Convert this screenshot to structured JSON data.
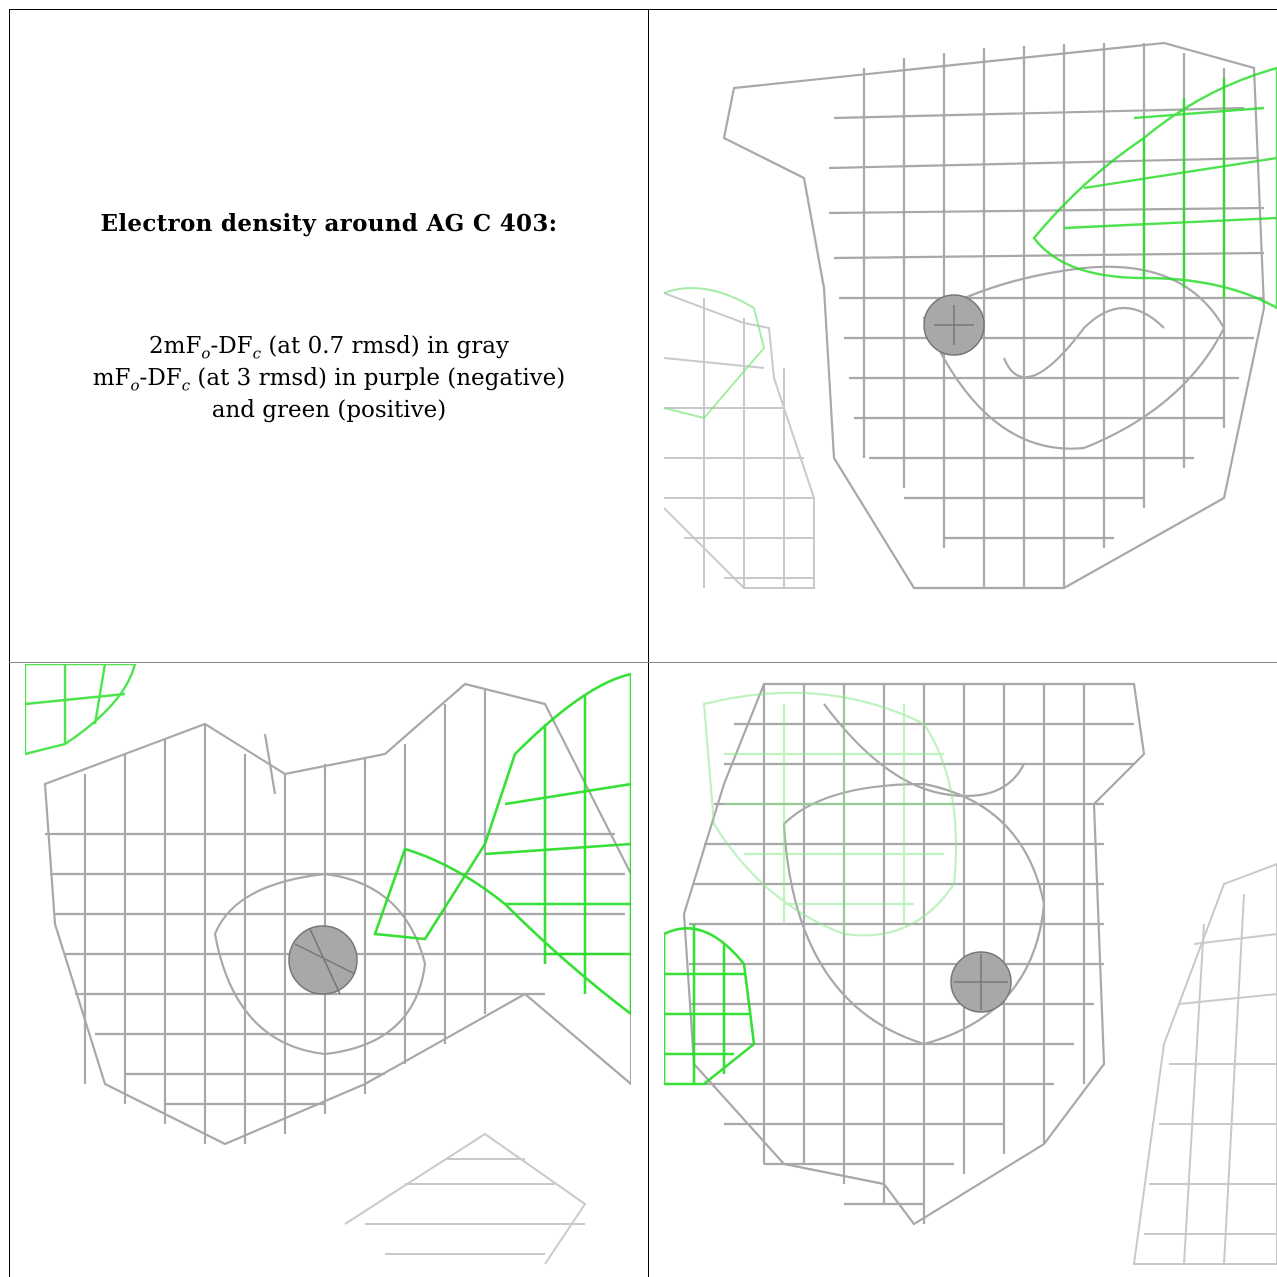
{
  "text_cell": {
    "title": "Electron density around AG C 403:",
    "legend_line1": {
      "pre": "2mF",
      "sub_o": "o",
      "mid": "-DF",
      "sub_c": "c",
      "post": " (at 0.7 rmsd) in gray"
    },
    "legend_line2": {
      "pre": "mF",
      "sub_o": "o",
      "mid": "-DF",
      "sub_c": "c",
      "post": " (at 3 rmsd) in purple (negative)"
    },
    "legend_line3": "and green (positive)"
  },
  "colors": {
    "mesh_gray": "#9a9a9a",
    "mesh_green": "#22dd22",
    "sphere": "#a8a8a8",
    "border": "#000000"
  },
  "panels": [
    {
      "name": "top-right",
      "atom": "AG C 403"
    },
    {
      "name": "bottom-left",
      "atom": "AG C 403"
    },
    {
      "name": "bottom-right",
      "atom": "AG C 403"
    }
  ]
}
